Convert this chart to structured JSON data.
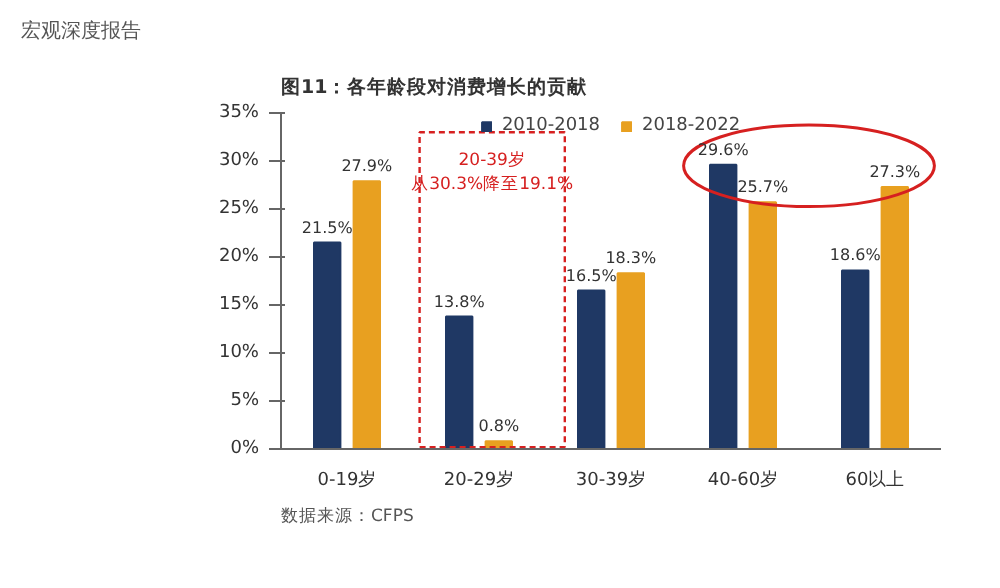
{
  "chart_data": {
    "type": "bar",
    "title": "图11：各年龄段对消费增长的贡献",
    "categories": [
      "0-19岁",
      "20-29岁",
      "30-39岁",
      "40-60岁",
      "60以上"
    ],
    "series": [
      {
        "name": "2010-2018",
        "color": "#1f3864",
        "values": [
          21.5,
          13.8,
          16.5,
          29.6,
          18.6
        ],
        "value_labels": [
          "21.5%",
          "13.8%",
          "16.5%",
          "29.6%",
          "18.6%"
        ]
      },
      {
        "name": "2018-2022",
        "color": "#e8a020",
        "values": [
          27.9,
          0.8,
          18.3,
          25.7,
          27.3
        ],
        "value_labels": [
          "27.9%",
          "0.8%",
          "18.3%",
          "25.7%",
          "27.3%"
        ]
      }
    ],
    "ylim": [
      0,
      35
    ],
    "yticks": [
      {
        "value": 0,
        "label": "0%"
      },
      {
        "value": 5,
        "label": "5%"
      },
      {
        "value": 10,
        "label": "10%"
      },
      {
        "value": 15,
        "label": "15%"
      },
      {
        "value": 20,
        "label": "20%"
      },
      {
        "value": 25,
        "label": "25%"
      },
      {
        "value": 30,
        "label": "30%"
      },
      {
        "value": 35,
        "label": "35%"
      }
    ],
    "legend": "top",
    "grid": false,
    "annotations": [
      "宏观深度报告",
      "20-39岁",
      "从30.3%降至19.1%",
      "数据来源：CFPS"
    ]
  }
}
